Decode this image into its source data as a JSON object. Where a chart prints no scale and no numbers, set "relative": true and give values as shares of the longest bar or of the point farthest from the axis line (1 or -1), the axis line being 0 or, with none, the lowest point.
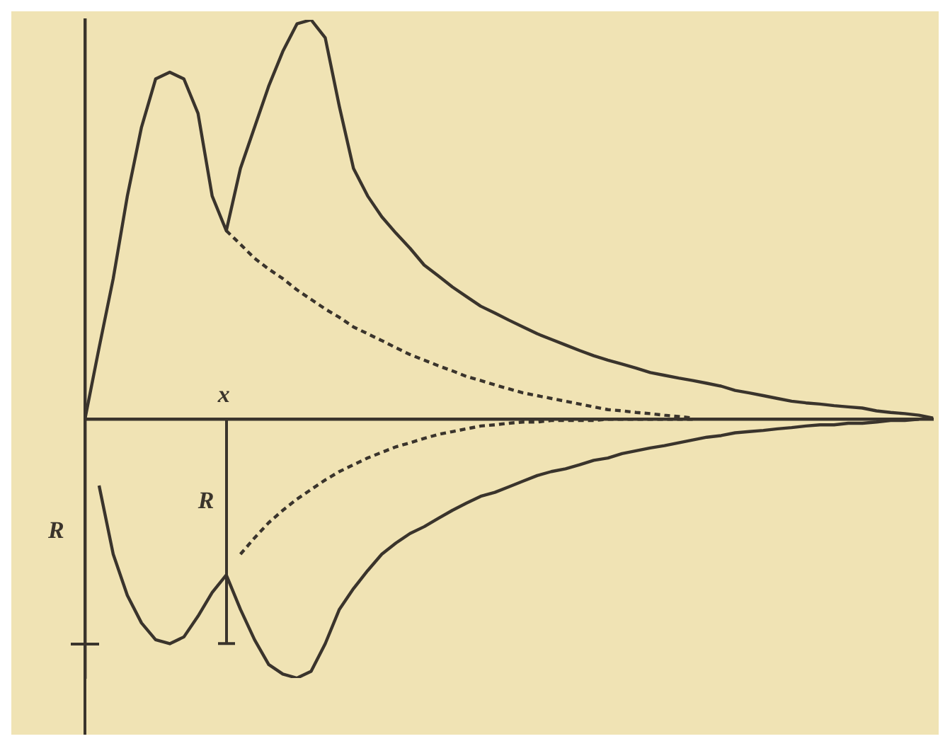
{
  "chart_data": {
    "type": "line",
    "relative": true,
    "grid": false,
    "legend": false,
    "marker": "none",
    "categories": [
      null,
      null,
      null,
      null,
      null,
      null,
      null,
      null,
      null,
      null,
      null,
      null,
      null,
      null,
      null,
      null,
      null,
      null,
      null,
      null,
      null,
      null,
      null,
      null,
      null,
      null,
      null,
      null,
      null,
      null,
      null,
      null,
      null,
      null,
      null,
      null,
      null,
      null,
      null,
      null,
      null,
      null,
      null,
      null,
      null,
      null,
      null,
      null,
      null,
      null,
      null,
      null,
      null,
      null,
      null,
      null,
      null,
      null,
      null,
      null,
      null
    ],
    "series": [
      {
        "color": "#3a342c",
        "line_style": "solid",
        "values": [
          0,
          0.179,
          0.352,
          0.559,
          0.731,
          0.852,
          0.869,
          0.852,
          0.766,
          0.559,
          0.472,
          0.628,
          0.731,
          0.834,
          0.921,
          0.99,
          1,
          0.955,
          0.783,
          0.628,
          0.559,
          0.507,
          0.466,
          0.428,
          0.386,
          0.359,
          0.331,
          0.307,
          0.283,
          0.266,
          0.248,
          0.231,
          0.214,
          0.2,
          0.186,
          0.172,
          0.159,
          0.148,
          0.138,
          0.128,
          0.117,
          0.11,
          0.103,
          0.097,
          0.09,
          0.083,
          0.072,
          0.066,
          0.059,
          0.052,
          0.045,
          0.041,
          0.038,
          0.034,
          0.031,
          0.028,
          0.021,
          0.017,
          0.014,
          0.01,
          0.003
        ]
      },
      {
        "color": "#3a342c",
        "line_style": "dashed",
        "values": [
          null,
          null,
          null,
          null,
          null,
          null,
          null,
          null,
          null,
          null,
          0.472,
          0.438,
          0.403,
          0.376,
          0.352,
          0.324,
          0.3,
          0.276,
          0.255,
          0.231,
          0.214,
          0.197,
          0.179,
          0.162,
          0.148,
          0.134,
          0.121,
          0.107,
          0.097,
          0.086,
          0.076,
          0.066,
          0.059,
          0.052,
          0.045,
          0.038,
          0.031,
          0.024,
          0.021,
          0.017,
          0.014,
          0.01,
          0.007,
          0.003,
          null,
          null,
          null,
          null,
          null,
          null,
          null,
          null,
          null,
          null,
          null,
          null,
          null,
          null,
          null,
          null,
          null
        ]
      },
      {
        "color": "#3a342c",
        "line_style": "solid",
        "values": [
          null,
          -0.166,
          -0.338,
          -0.441,
          -0.51,
          -0.552,
          -0.562,
          -0.545,
          -0.493,
          -0.434,
          -0.39,
          -0.476,
          -0.552,
          -0.614,
          -0.638,
          -0.648,
          -0.631,
          -0.562,
          -0.476,
          -0.424,
          -0.379,
          -0.338,
          -0.31,
          -0.286,
          -0.269,
          -0.248,
          -0.228,
          -0.21,
          -0.193,
          -0.183,
          -0.169,
          -0.155,
          -0.141,
          -0.131,
          -0.124,
          -0.114,
          -0.103,
          -0.097,
          -0.086,
          -0.079,
          -0.072,
          -0.066,
          -0.059,
          -0.052,
          -0.045,
          -0.041,
          -0.034,
          -0.031,
          -0.028,
          -0.024,
          -0.021,
          -0.017,
          -0.014,
          -0.014,
          -0.01,
          -0.01,
          -0.007,
          -0.003,
          -0.003,
          0,
          null
        ]
      },
      {
        "color": "#3a342c",
        "line_style": "dashed",
        "values": [
          null,
          null,
          null,
          null,
          null,
          null,
          null,
          null,
          null,
          null,
          null,
          -0.338,
          -0.297,
          -0.259,
          -0.228,
          -0.2,
          -0.176,
          -0.152,
          -0.131,
          -0.114,
          -0.097,
          -0.083,
          -0.069,
          -0.059,
          -0.048,
          -0.038,
          -0.031,
          -0.024,
          -0.017,
          -0.014,
          -0.01,
          -0.007,
          -0.007,
          -0.003,
          -0.003,
          -0.003,
          -0.003,
          0,
          0,
          0,
          0,
          0,
          0,
          0,
          null,
          null,
          null,
          null,
          null,
          null,
          null,
          null,
          null,
          null,
          null,
          null,
          null,
          null,
          null,
          null,
          null
        ]
      }
    ],
    "annotations": [
      "x",
      "R",
      "R"
    ]
  }
}
